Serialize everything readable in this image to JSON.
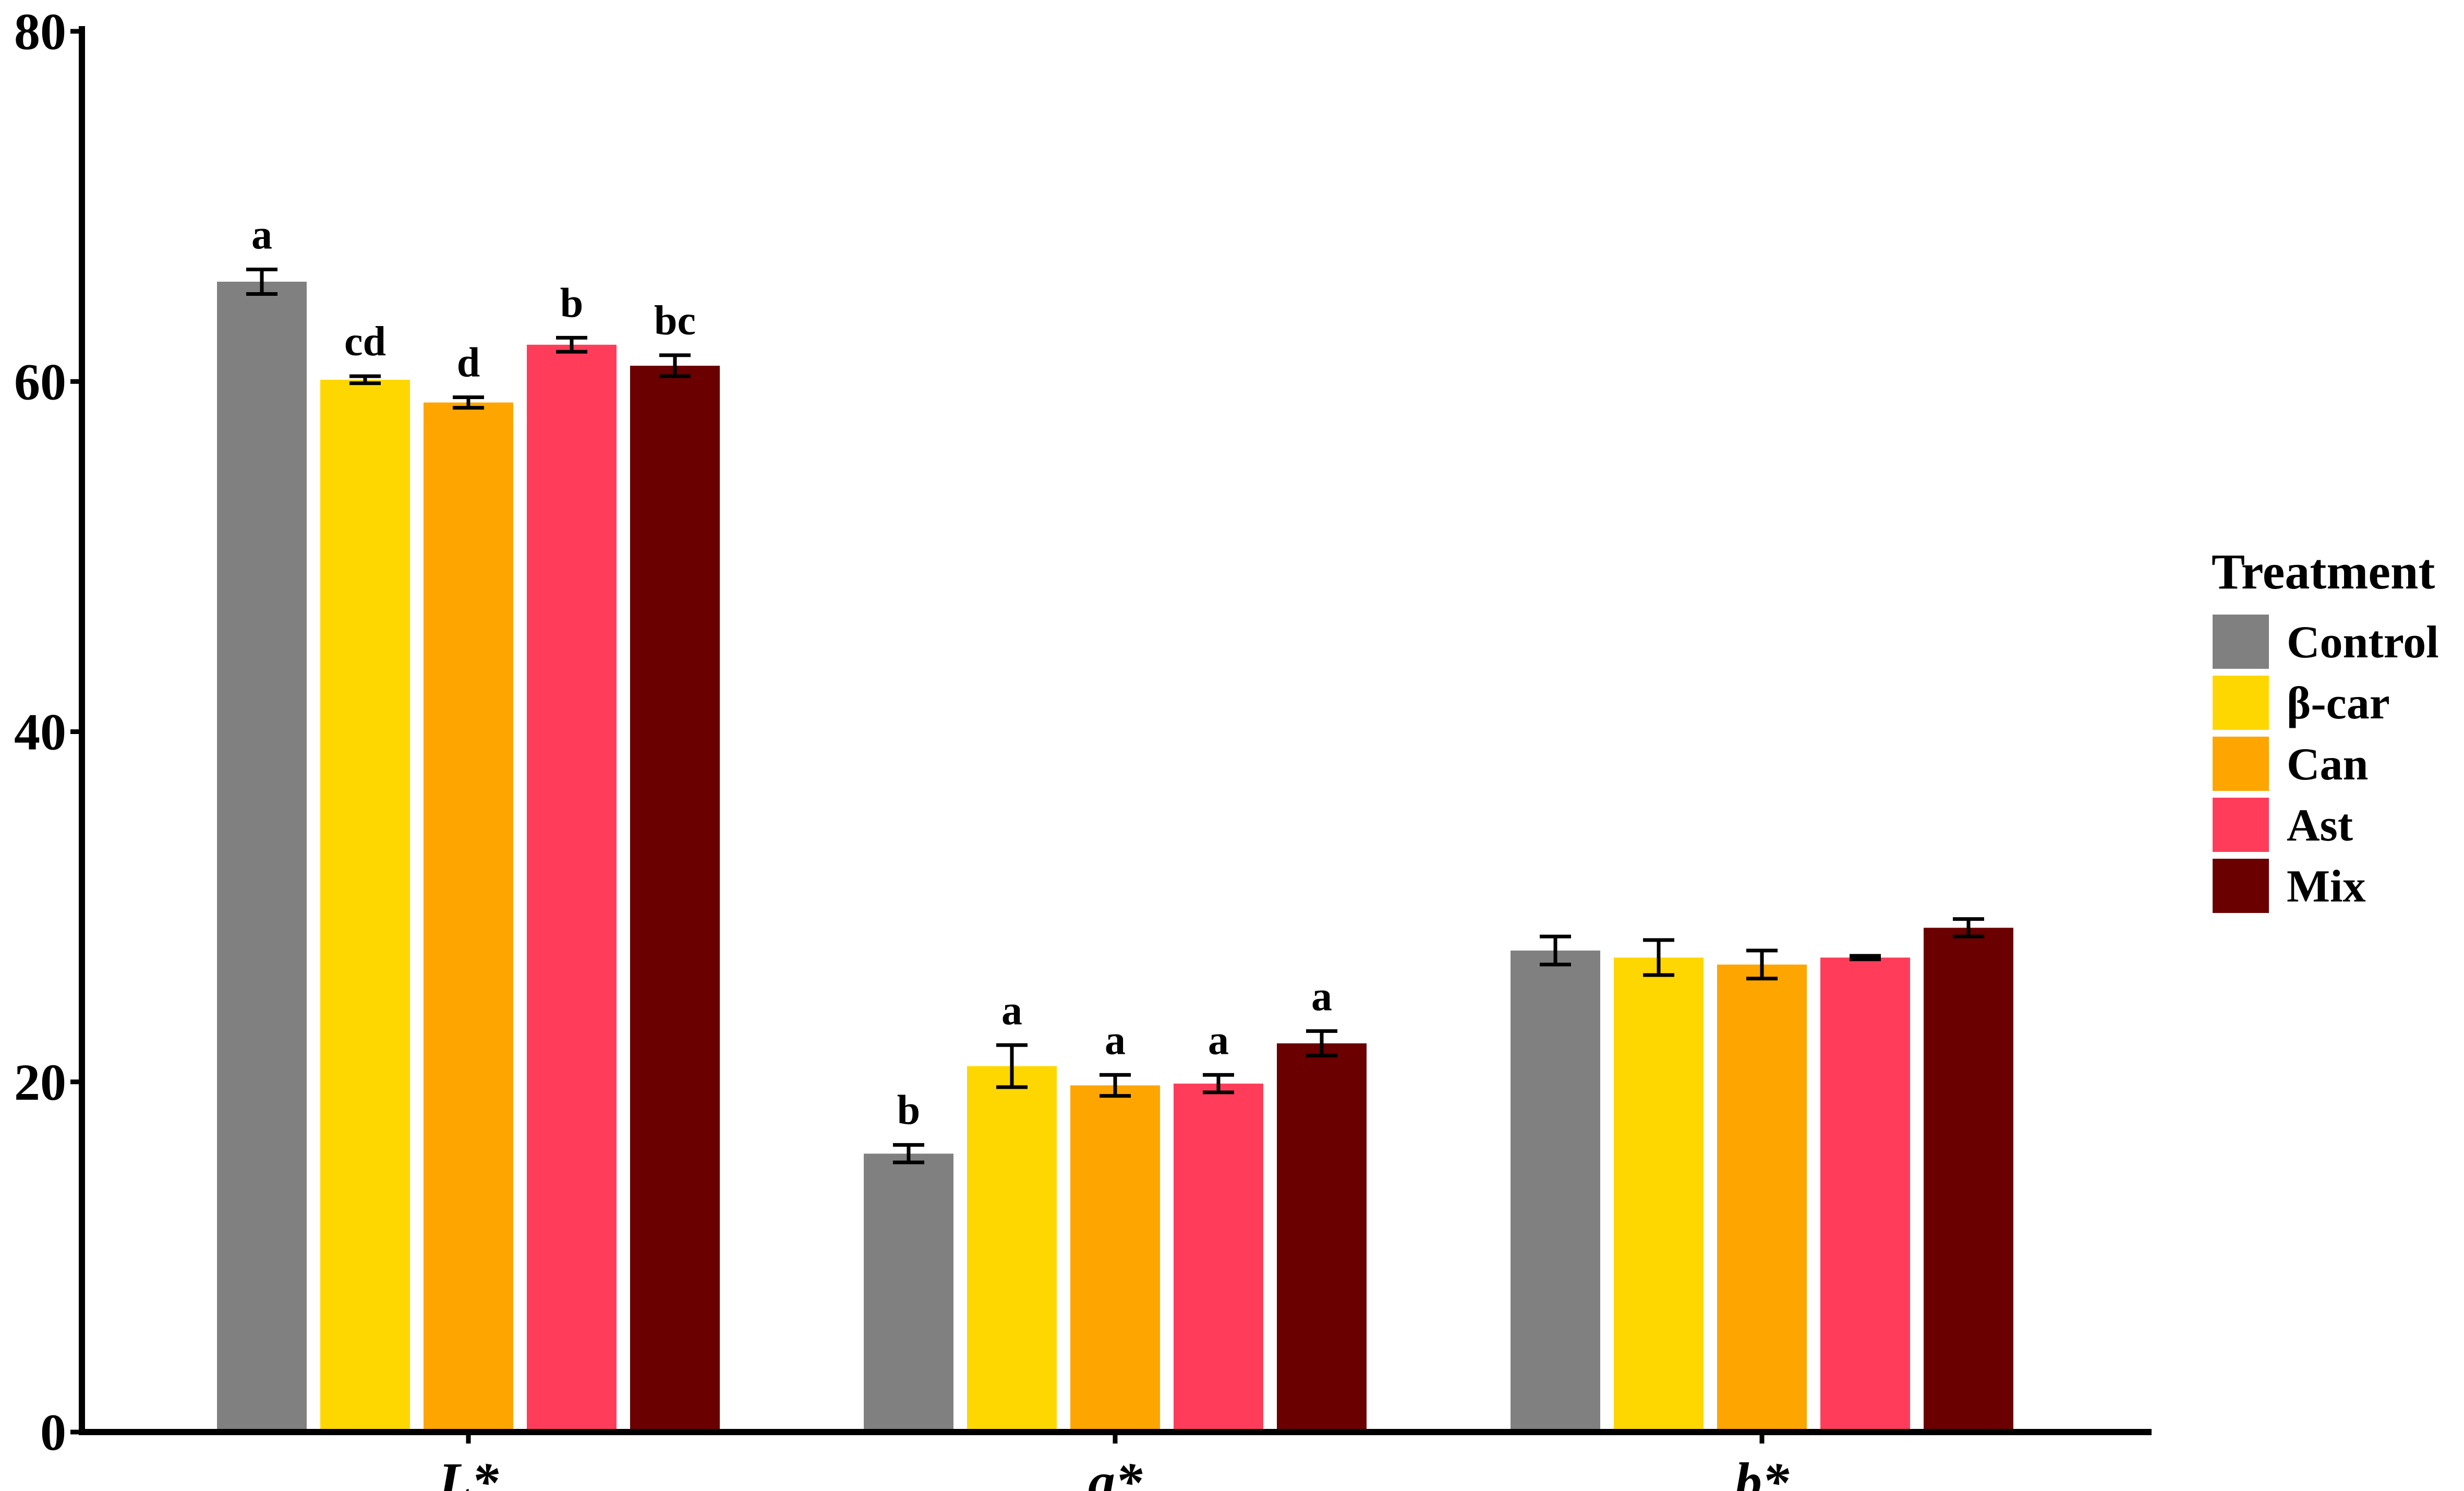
{
  "chart_data": {
    "type": "bar",
    "categories": [
      "L*",
      "a*",
      "b*"
    ],
    "ylim": [
      0,
      80
    ],
    "yticks": [
      0,
      20,
      40,
      60,
      80
    ],
    "grid": false,
    "legend": {
      "title": "Treatment",
      "placement": "right"
    },
    "series": [
      {
        "name": "Control",
        "color": "#808080",
        "values": [
          65.7,
          15.9,
          27.5
        ],
        "errors": [
          0.7,
          0.5,
          0.8
        ],
        "labels": [
          "a",
          "b",
          ""
        ]
      },
      {
        "name": "β-car",
        "color": "#FFD700",
        "values": [
          60.1,
          20.9,
          27.1
        ],
        "errors": [
          0.2,
          1.2,
          1.0
        ],
        "labels": [
          "cd",
          "a",
          ""
        ]
      },
      {
        "name": "Can",
        "color": "#FFA500",
        "values": [
          58.8,
          19.8,
          26.7
        ],
        "errors": [
          0.3,
          0.6,
          0.8
        ],
        "labels": [
          "d",
          "a",
          ""
        ]
      },
      {
        "name": "Ast",
        "color": "#FF3D5A",
        "values": [
          62.1,
          19.9,
          27.1
        ],
        "errors": [
          0.4,
          0.5,
          0.1
        ],
        "labels": [
          "b",
          "a",
          ""
        ]
      },
      {
        "name": "Mix",
        "color": "#6B0000",
        "values": [
          60.9,
          22.2,
          28.8
        ],
        "errors": [
          0.6,
          0.7,
          0.5
        ],
        "labels": [
          "bc",
          "a",
          ""
        ]
      }
    ]
  }
}
